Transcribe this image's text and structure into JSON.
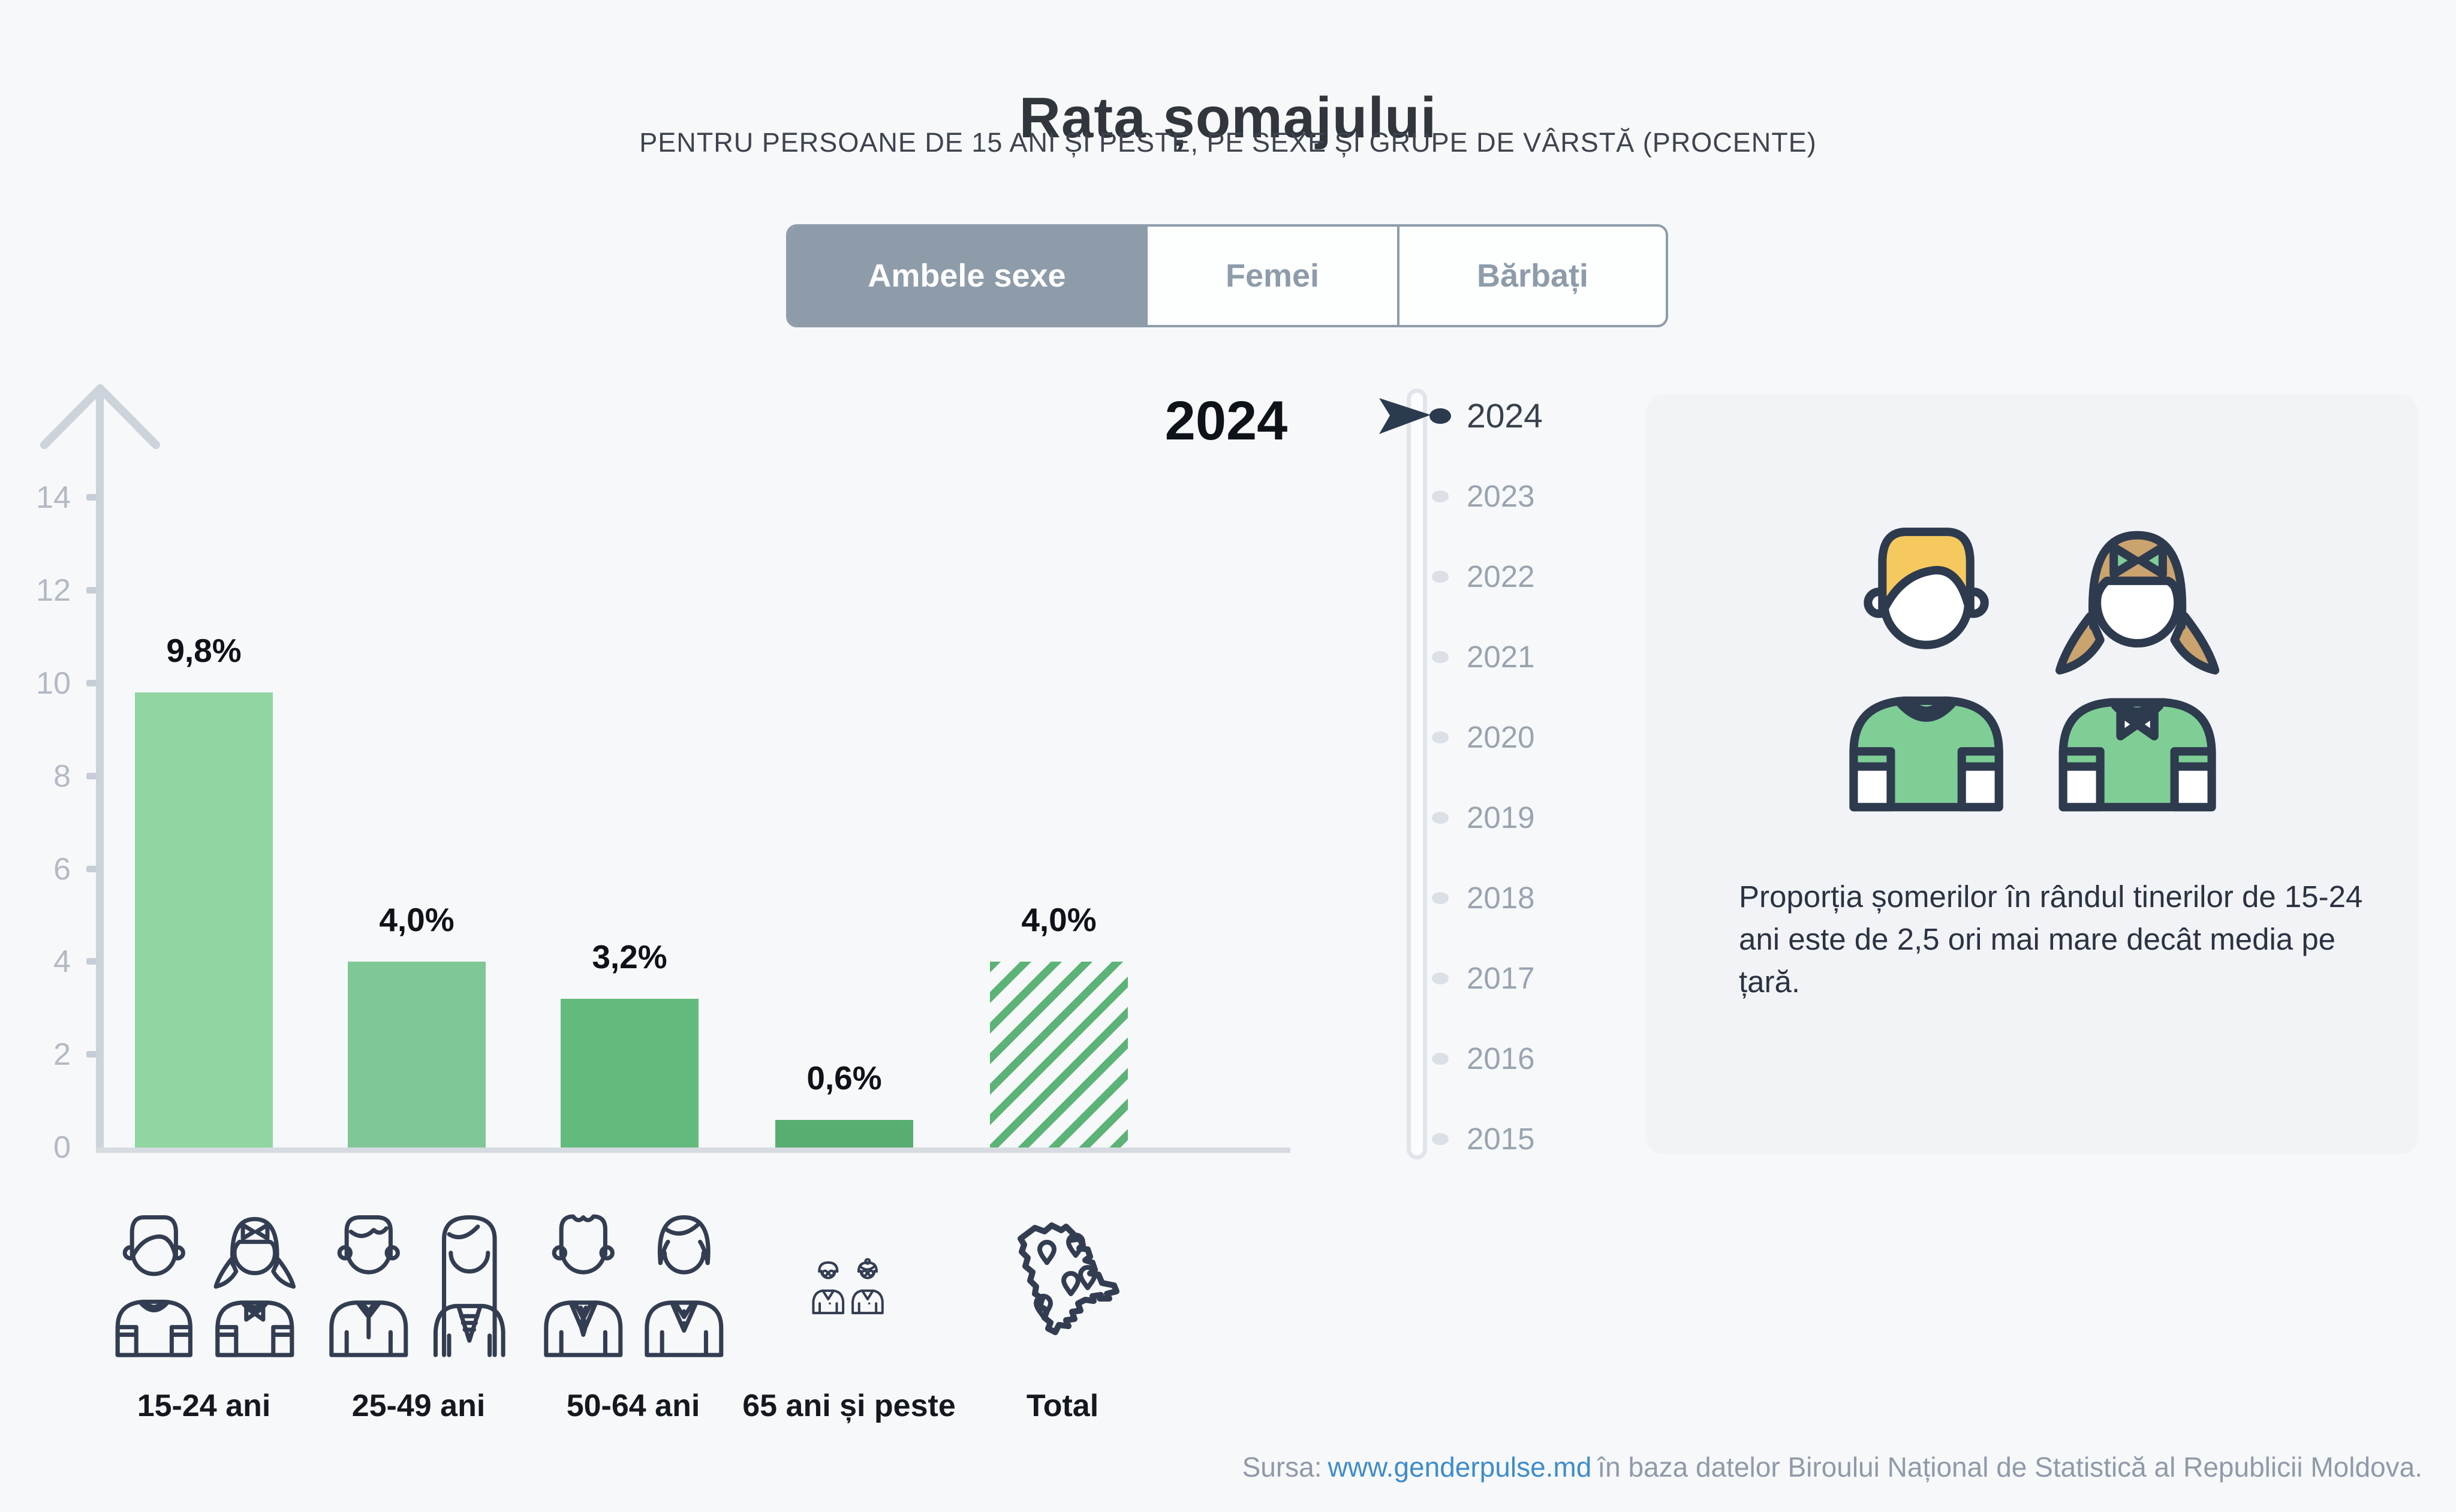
{
  "title": "Rata șomajului",
  "subtitle": "PENTRU PERSOANE DE 15 ANI ȘI PESTE, PE SEXE ȘI GRUPE DE VÂRSTĂ (PROCENTE)",
  "tabs": {
    "items": [
      {
        "label": "Ambele sexe",
        "active": true
      },
      {
        "label": "Femei",
        "active": false
      },
      {
        "label": "Bărbați",
        "active": false
      }
    ]
  },
  "chart_data": {
    "type": "bar",
    "title": "Rata șomajului",
    "subtitle": "Pentru persoane de 15 ani și peste, pe sexe și grupe de vârstă (procente)",
    "selected_series": "Ambele sexe",
    "year": "2024",
    "categories": [
      "15-24 ani",
      "25-49 ani",
      "50-64 ani",
      "65 ani și peste",
      "Total"
    ],
    "values": [
      9.8,
      4.0,
      3.2,
      0.6,
      4.0
    ],
    "value_labels": [
      "9,8%",
      "4,0%",
      "3,2%",
      "0,6%",
      "4,0%"
    ],
    "ylim": [
      0,
      14
    ],
    "yticks": [
      0,
      2,
      4,
      6,
      8,
      10,
      12,
      14
    ],
    "grid": false,
    "bar_colors": [
      "#90d5a2",
      "#7fc795",
      "#63ba7d",
      "#57ae70",
      "#5cb377"
    ],
    "total_bar_pattern": "diagonal-hatch",
    "legend_position": "none"
  },
  "timeline": {
    "selected_year": "2024",
    "years": [
      "2024",
      "2023",
      "2022",
      "2021",
      "2020",
      "2019",
      "2018",
      "2017",
      "2016",
      "2015"
    ]
  },
  "infobox": {
    "icon": "boy-girl-colored-icon",
    "text": "Proporția șomerilor în rândul tinerilor de 15-24 ani este de 2,5 ori mai mare decât media pe țară."
  },
  "category_icons": [
    "young-pair-icon",
    "adult-pair-icon",
    "senior-pair-icon",
    "elderly-pair-icon",
    "moldova-map-icon"
  ],
  "source": {
    "prefix": "Sursa:",
    "link": "www.genderpulse.md",
    "suffix": "în baza datelor Biroului Național de Statistică al Republicii Moldova."
  },
  "colors": {
    "background": "#f7f8f9",
    "accent_green": "#7fce96",
    "bar_light": "#90d5a2",
    "bar_total_hatch": "#5cb377",
    "tab_active": "#8e9caa",
    "axis": "#ccd3da",
    "muted_text": "#99a4b0",
    "dark_text": "#2c3a4f",
    "link": "#3e8ccb",
    "infobox_bg": "#f1f3f6",
    "boy_hair": "#f6c95f",
    "girl_hair": "#cba36e",
    "outline": "#333d52"
  }
}
